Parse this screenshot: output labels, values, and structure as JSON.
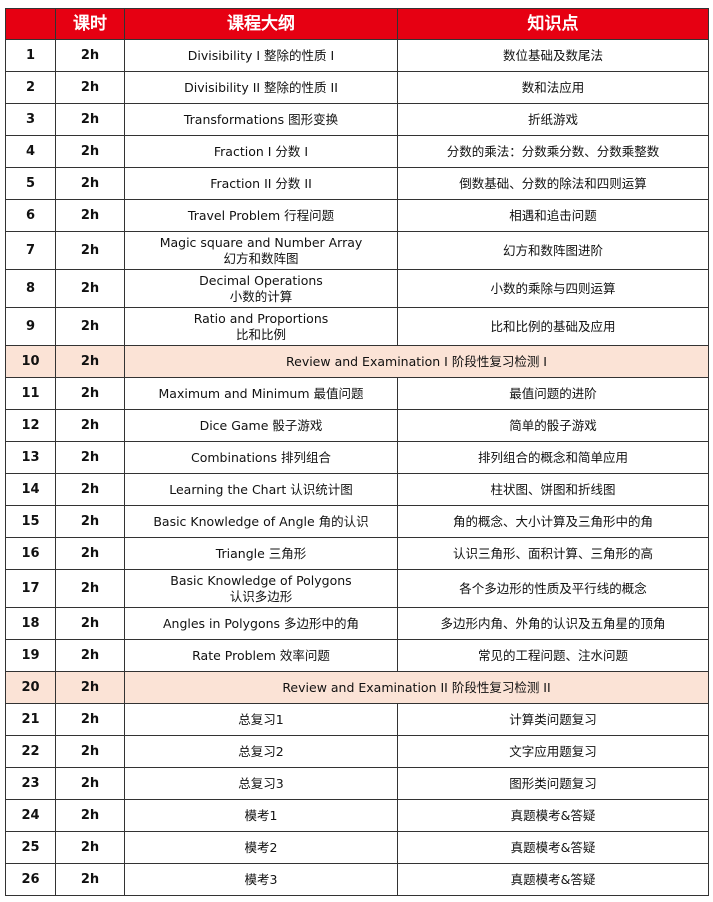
{
  "header": {
    "no": "",
    "hours": "课时",
    "outline": "课程大纲",
    "points": "知识点"
  },
  "colors": {
    "header_bg": "#e60012",
    "review_bg": "#fbe3d6"
  },
  "rows": [
    {
      "no": "1",
      "hours": "2h",
      "outline": "Divisibility I 整除的性质 I",
      "points": "数位基础及数尾法"
    },
    {
      "no": "2",
      "hours": "2h",
      "outline": "Divisibility II 整除的性质 II",
      "points": "数和法应用"
    },
    {
      "no": "3",
      "hours": "2h",
      "outline": "Transformations 图形变换",
      "points": "折纸游戏"
    },
    {
      "no": "4",
      "hours": "2h",
      "outline": "Fraction I 分数 I",
      "points": "分数的乘法：分数乘分数、分数乘整数"
    },
    {
      "no": "5",
      "hours": "2h",
      "outline": "Fraction II 分数 II",
      "points": "倒数基础、分数的除法和四则运算"
    },
    {
      "no": "6",
      "hours": "2h",
      "outline": "Travel Problem 行程问题",
      "points": "相遇和追击问题"
    },
    {
      "no": "7",
      "hours": "2h",
      "outline": "Magic square and Number Array",
      "outline2": "幻方和数阵图",
      "points": "幻方和数阵图进阶"
    },
    {
      "no": "8",
      "hours": "2h",
      "outline": "Decimal Operations",
      "outline2": "小数的计算",
      "points": "小数的乘除与四则运算"
    },
    {
      "no": "9",
      "hours": "2h",
      "outline": "Ratio and Proportions",
      "outline2": "比和比例",
      "points": "比和比例的基础及应用"
    },
    {
      "no": "10",
      "hours": "2h",
      "outline": "Review and Examination  I 阶段性复习检测 I",
      "review": true
    },
    {
      "no": "11",
      "hours": "2h",
      "outline": "Maximum and Minimum 最值问题",
      "points": "最值问题的进阶"
    },
    {
      "no": "12",
      "hours": "2h",
      "outline": "Dice Game 骰子游戏",
      "points": "简单的骰子游戏"
    },
    {
      "no": "13",
      "hours": "2h",
      "outline": "Combinations 排列组合",
      "points": "排列组合的概念和简单应用"
    },
    {
      "no": "14",
      "hours": "2h",
      "outline": "Learning the Chart 认识统计图",
      "points": "柱状图、饼图和折线图"
    },
    {
      "no": "15",
      "hours": "2h",
      "outline": "Basic Knowledge of Angle 角的认识",
      "points": "角的概念、大小计算及三角形中的角"
    },
    {
      "no": "16",
      "hours": "2h",
      "outline": "Triangle 三角形",
      "points": "认识三角形、面积计算、三角形的高"
    },
    {
      "no": "17",
      "hours": "2h",
      "outline": "Basic Knowledge of Polygons",
      "outline2": "认识多边形",
      "points": "各个多边形的性质及平行线的概念"
    },
    {
      "no": "18",
      "hours": "2h",
      "outline": "Angles in Polygons 多边形中的角",
      "points": "多边形内角、外角的认识及五角星的顶角"
    },
    {
      "no": "19",
      "hours": "2h",
      "outline": "Rate Problem 效率问题",
      "points": "常见的工程问题、注水问题"
    },
    {
      "no": "20",
      "hours": "2h",
      "outline": "Review and Examination II 阶段性复习检测 II",
      "review": true
    },
    {
      "no": "21",
      "hours": "2h",
      "outline": "总复习1",
      "points": "计算类问题复习"
    },
    {
      "no": "22",
      "hours": "2h",
      "outline": "总复习2",
      "points": "文字应用题复习"
    },
    {
      "no": "23",
      "hours": "2h",
      "outline": "总复习3",
      "points": "图形类问题复习"
    },
    {
      "no": "24",
      "hours": "2h",
      "outline": "模考1",
      "points": "真题模考&答疑"
    },
    {
      "no": "25",
      "hours": "2h",
      "outline": "模考2",
      "points": "真题模考&答疑"
    },
    {
      "no": "26",
      "hours": "2h",
      "outline": "模考3",
      "points": "真题模考&答疑"
    }
  ]
}
